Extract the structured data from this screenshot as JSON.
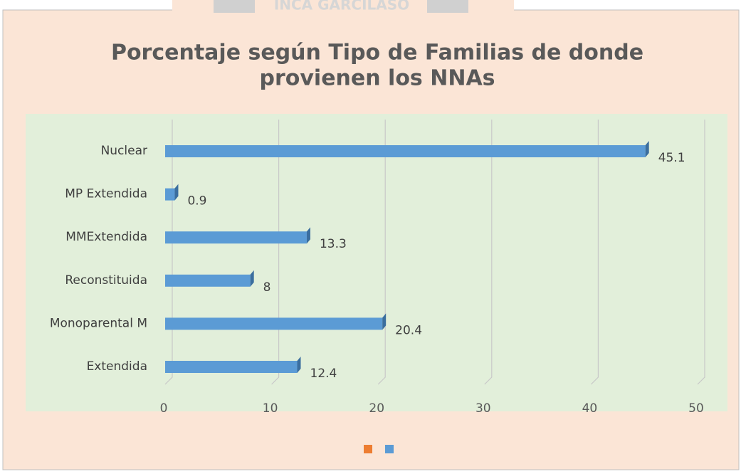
{
  "watermark": "INCA GARCILASO",
  "chart_data": {
    "type": "bar3d_horizontal",
    "title": [
      "Porcentaje según Tipo de Familias de donde",
      "provienen los NNAs"
    ],
    "categories": [
      "Extendida",
      "Monoparental M",
      "Reconstituida",
      "MMExtendida",
      "MP Extendida",
      "Nuclear"
    ],
    "series": [
      {
        "color": "#5b9bd5",
        "values": [
          12.4,
          20.4,
          8,
          13.3,
          0.9,
          45.1
        ]
      }
    ],
    "legend_colors": [
      "#ed7d31",
      "#5b9bd5"
    ],
    "xlim": [
      0,
      50
    ],
    "xticks": [
      0,
      10,
      20,
      30,
      40,
      50
    ],
    "grid": true
  }
}
